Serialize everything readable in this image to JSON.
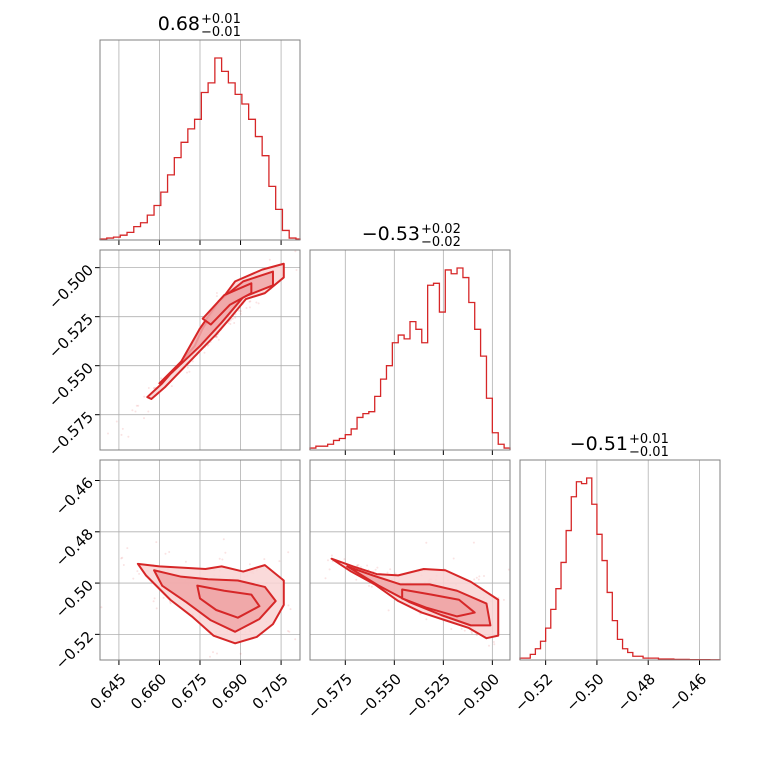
{
  "chart_data": {
    "type": "corner",
    "colors": {
      "main": "#d62728",
      "fill_light": "#f9d3d3",
      "fill_mid": "#f0a7a8",
      "grid": "#b0b0b0",
      "frame": "#808080"
    },
    "grid": true,
    "parameters": [
      {
        "index": 0,
        "range": [
          0.638,
          0.712
        ],
        "ticks": [
          "0.645",
          "0.660",
          "0.675",
          "0.690",
          "0.705"
        ],
        "tick_values": [
          0.645,
          0.66,
          0.675,
          0.69,
          0.705
        ],
        "title": {
          "base": "0.68",
          "plus": "+0.01",
          "minus": "−0.01"
        }
      },
      {
        "index": 1,
        "range": [
          -0.593,
          -0.491
        ],
        "ticks": [
          "−0.575",
          "−0.550",
          "−0.525",
          "−0.500"
        ],
        "tick_values": [
          -0.575,
          -0.55,
          -0.525,
          -0.5
        ],
        "title": {
          "base": "−0.53",
          "plus": "+0.02",
          "minus": "−0.02"
        }
      },
      {
        "index": 2,
        "range": [
          -0.53,
          -0.452
        ],
        "ticks": [
          "−0.52",
          "−0.50",
          "−0.48",
          "−0.46"
        ],
        "tick_values": [
          -0.52,
          -0.5,
          -0.48,
          -0.46
        ],
        "title": {
          "base": "−0.51",
          "plus": "+0.01",
          "minus": "−0.01"
        }
      }
    ],
    "histograms": [
      {
        "param": 0,
        "bin_edges": [
          0.638,
          0.6405,
          0.643,
          0.6455,
          0.648,
          0.6505,
          0.653,
          0.6555,
          0.658,
          0.6605,
          0.663,
          0.6655,
          0.668,
          0.6705,
          0.673,
          0.6755,
          0.678,
          0.6805,
          0.683,
          0.6855,
          0.688,
          0.6905,
          0.693,
          0.6955,
          0.698,
          0.7005,
          0.703,
          0.7055,
          0.708,
          0.7105,
          0.712
        ],
        "counts": [
          0.5,
          1,
          1.5,
          2.5,
          4,
          7,
          9,
          13,
          18,
          25,
          34,
          43,
          51,
          58,
          63,
          77,
          82,
          95,
          88,
          82,
          76,
          71,
          63,
          54,
          44,
          28,
          16,
          5,
          1,
          0.5
        ]
      },
      {
        "param": 1,
        "bin_edges": [
          -0.593,
          -0.59,
          -0.587,
          -0.584,
          -0.581,
          -0.578,
          -0.575,
          -0.572,
          -0.569,
          -0.566,
          -0.563,
          -0.56,
          -0.557,
          -0.554,
          -0.551,
          -0.548,
          -0.545,
          -0.542,
          -0.539,
          -0.536,
          -0.533,
          -0.53,
          -0.527,
          -0.524,
          -0.521,
          -0.518,
          -0.515,
          -0.512,
          -0.509,
          -0.506,
          -0.503,
          -0.5,
          -0.497,
          -0.494,
          -0.491
        ],
        "counts": [
          1,
          2,
          2,
          3,
          5,
          6,
          8,
          11,
          17,
          19,
          20,
          28,
          37,
          44,
          56,
          60,
          58,
          67,
          63,
          56,
          86,
          87,
          72,
          94,
          92,
          95,
          90,
          77,
          63,
          49,
          27,
          9,
          3,
          1
        ]
      },
      {
        "param": 2,
        "bin_edges": [
          -0.53,
          -0.528,
          -0.526,
          -0.524,
          -0.522,
          -0.52,
          -0.518,
          -0.516,
          -0.514,
          -0.512,
          -0.51,
          -0.508,
          -0.506,
          -0.504,
          -0.502,
          -0.5,
          -0.498,
          -0.496,
          -0.494,
          -0.492,
          -0.49,
          -0.488,
          -0.486,
          -0.484,
          -0.482,
          -0.48,
          -0.478,
          -0.476,
          -0.474,
          -0.472,
          -0.47,
          -0.468,
          -0.466,
          -0.464,
          -0.462,
          -0.46,
          -0.458,
          -0.456,
          -0.454,
          -0.452
        ],
        "counts": [
          1,
          1,
          3,
          6,
          10,
          17,
          27,
          38,
          52,
          69,
          87,
          95,
          94,
          97,
          83,
          67,
          53,
          36,
          21,
          11,
          6,
          4,
          2,
          2,
          1,
          1,
          1,
          0.5,
          0.5,
          0.5,
          0.3,
          0.3,
          0.3,
          0.2,
          0.2,
          0.2,
          0.2,
          0.1,
          0.1
        ]
      }
    ],
    "pairs": [
      {
        "x_param": 0,
        "y_param": 1,
        "contours": [
          {
            "level": "outer",
            "points": [
              [
                0.6555,
                -0.566
              ],
              [
                0.661,
                -0.559
              ],
              [
                0.668,
                -0.548
              ],
              [
                0.673,
                -0.54
              ],
              [
                0.676,
                -0.531
              ],
              [
                0.681,
                -0.52
              ],
              [
                0.688,
                -0.507
              ],
              [
                0.698,
                -0.501
              ],
              [
                0.706,
                -0.498
              ],
              [
                0.706,
                -0.505
              ],
              [
                0.699,
                -0.513
              ],
              [
                0.692,
                -0.516
              ],
              [
                0.686,
                -0.526
              ],
              [
                0.681,
                -0.534
              ],
              [
                0.676,
                -0.541
              ],
              [
                0.669,
                -0.551
              ],
              [
                0.662,
                -0.561
              ],
              [
                0.657,
                -0.567
              ]
            ]
          },
          {
            "level": "middle",
            "points": [
              [
                0.66,
                -0.559
              ],
              [
                0.668,
                -0.548
              ],
              [
                0.675,
                -0.531
              ],
              [
                0.682,
                -0.517
              ],
              [
                0.691,
                -0.507
              ],
              [
                0.702,
                -0.502
              ],
              [
                0.702,
                -0.509
              ],
              [
                0.691,
                -0.515
              ],
              [
                0.683,
                -0.528
              ],
              [
                0.675,
                -0.54
              ],
              [
                0.665,
                -0.553
              ]
            ]
          },
          {
            "level": "inner",
            "points": [
              [
                0.676,
                -0.526
              ],
              [
                0.684,
                -0.514
              ],
              [
                0.694,
                -0.508
              ],
              [
                0.694,
                -0.513
              ],
              [
                0.686,
                -0.519
              ],
              [
                0.679,
                -0.529
              ]
            ]
          }
        ]
      },
      {
        "x_param": 0,
        "y_param": 2,
        "contours": [
          {
            "level": "outer",
            "points": [
              [
                0.652,
                -0.4925
              ],
              [
                0.66,
                -0.4935
              ],
              [
                0.669,
                -0.494
              ],
              [
                0.677,
                -0.4945
              ],
              [
                0.683,
                -0.4935
              ],
              [
                0.691,
                -0.4955
              ],
              [
                0.699,
                -0.493
              ],
              [
                0.706,
                -0.499
              ],
              [
                0.706,
                -0.5085
              ],
              [
                0.702,
                -0.516
              ],
              [
                0.696,
                -0.521
              ],
              [
                0.688,
                -0.5235
              ],
              [
                0.68,
                -0.5205
              ],
              [
                0.672,
                -0.513
              ],
              [
                0.664,
                -0.5065
              ],
              [
                0.655,
                -0.497
              ]
            ]
          },
          {
            "level": "middle",
            "points": [
              [
                0.658,
                -0.495
              ],
              [
                0.668,
                -0.4975
              ],
              [
                0.678,
                -0.4985
              ],
              [
                0.689,
                -0.499
              ],
              [
                0.699,
                -0.5015
              ],
              [
                0.703,
                -0.507
              ],
              [
                0.697,
                -0.514
              ],
              [
                0.688,
                -0.519
              ],
              [
                0.679,
                -0.5145
              ],
              [
                0.67,
                -0.5075
              ],
              [
                0.661,
                -0.501
              ]
            ]
          },
          {
            "level": "inner",
            "points": [
              [
                0.674,
                -0.501
              ],
              [
                0.684,
                -0.503
              ],
              [
                0.694,
                -0.5045
              ],
              [
                0.697,
                -0.509
              ],
              [
                0.689,
                -0.5135
              ],
              [
                0.681,
                -0.5105
              ],
              [
                0.675,
                -0.506
              ]
            ]
          }
        ]
      },
      {
        "x_param": 1,
        "y_param": 2,
        "contours": [
          {
            "level": "outer",
            "points": [
              [
                -0.582,
                -0.4905
              ],
              [
                -0.571,
                -0.4935
              ],
              [
                -0.559,
                -0.4965
              ],
              [
                -0.548,
                -0.497
              ],
              [
                -0.535,
                -0.4945
              ],
              [
                -0.524,
                -0.495
              ],
              [
                -0.511,
                -0.4995
              ],
              [
                -0.497,
                -0.5065
              ],
              [
                -0.497,
                -0.5205
              ],
              [
                -0.503,
                -0.5215
              ],
              [
                -0.512,
                -0.5175
              ],
              [
                -0.524,
                -0.5145
              ],
              [
                -0.536,
                -0.5115
              ],
              [
                -0.548,
                -0.507
              ],
              [
                -0.56,
                -0.5005
              ],
              [
                -0.572,
                -0.4955
              ]
            ]
          },
          {
            "level": "middle",
            "points": [
              [
                -0.574,
                -0.4935
              ],
              [
                -0.561,
                -0.497
              ],
              [
                -0.547,
                -0.5005
              ],
              [
                -0.532,
                -0.5005
              ],
              [
                -0.518,
                -0.503
              ],
              [
                -0.503,
                -0.508
              ],
              [
                -0.501,
                -0.5165
              ],
              [
                -0.511,
                -0.5165
              ],
              [
                -0.526,
                -0.5125
              ],
              [
                -0.542,
                -0.5075
              ],
              [
                -0.558,
                -0.501
              ]
            ]
          },
          {
            "level": "inner",
            "points": [
              [
                -0.546,
                -0.5025
              ],
              [
                -0.531,
                -0.5045
              ],
              [
                -0.517,
                -0.5065
              ],
              [
                -0.509,
                -0.5115
              ],
              [
                -0.518,
                -0.513
              ],
              [
                -0.534,
                -0.5095
              ],
              [
                -0.546,
                -0.506
              ]
            ]
          }
        ]
      }
    ]
  }
}
